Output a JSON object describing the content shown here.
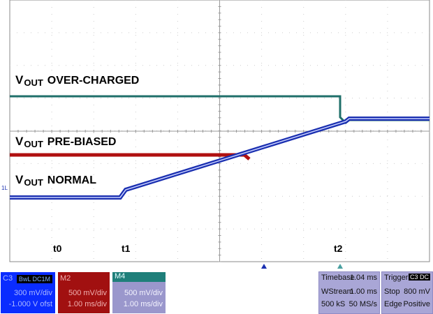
{
  "traces": {
    "over_charged": {
      "main": "V",
      "sub": "OUT",
      "rest": "OVER-CHARGED",
      "color": "#1f6f6a"
    },
    "pre_biased": {
      "main": "V",
      "sub": "OUT",
      "rest": "PRE-BIASED",
      "color": "#b01010"
    },
    "normal": {
      "main": "V",
      "sub": "OUT",
      "rest": "NORMAL",
      "color": "#1a2fb0"
    }
  },
  "time_markers": [
    "t0",
    "t1",
    "t2"
  ],
  "ground_marker": "1L",
  "channels": {
    "c3": {
      "label": "C3",
      "badge": "BwL DC1M",
      "vdiv": "300 mV/div",
      "offset": "-1.000 V ofst",
      "color": "#0a2cff"
    },
    "m2": {
      "label": "M2",
      "vdiv": "500 mV/div",
      "tdiv": "1.00 ms/div",
      "color": "#a11010"
    },
    "m4": {
      "label": "M4",
      "vdiv": "500 mV/div",
      "tdiv": "1.00 ms/div",
      "color": "#9a97cc"
    }
  },
  "timebase": {
    "label": "Timebase",
    "value": "1.04 ms",
    "mode": "WStream",
    "tdiv": "1.00 ms",
    "samples": "500 kS",
    "rate": "50 MS/s"
  },
  "trigger": {
    "label": "Trigger",
    "badge": "C3 DC",
    "mode": "Stop",
    "level": "800 mV",
    "type": "Edge",
    "slope": "Positive"
  }
}
